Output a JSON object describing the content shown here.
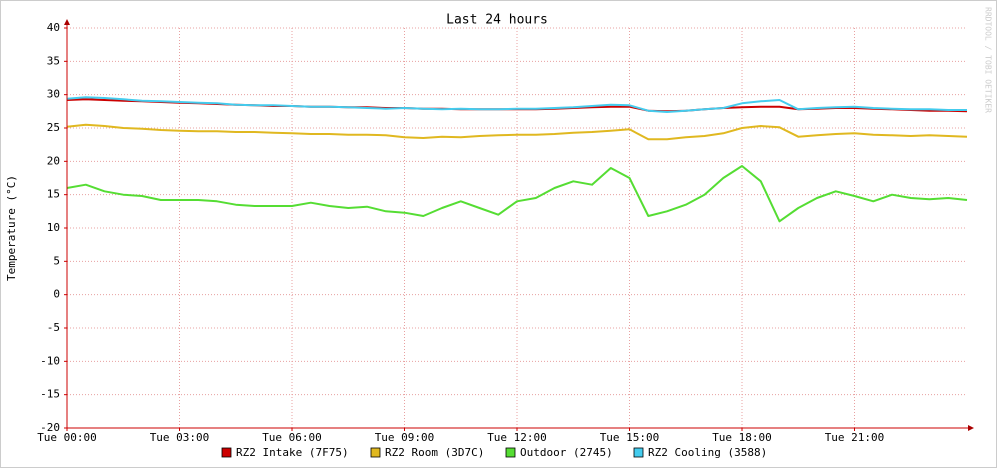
{
  "chart_data": {
    "type": "line",
    "title": "Last 24 hours",
    "y_label": "Temperature (°C)",
    "watermark": "RRDTOOL / TOBI OETIKER",
    "x": [
      0,
      0.5,
      1,
      1.5,
      2,
      2.5,
      3,
      3.5,
      4,
      4.5,
      5,
      5.5,
      6,
      6.5,
      7,
      7.5,
      8,
      8.5,
      9,
      9.5,
      10,
      10.5,
      11,
      11.5,
      12,
      12.5,
      13,
      13.5,
      14,
      14.5,
      15,
      15.5,
      16,
      16.5,
      17,
      17.5,
      18,
      18.5,
      19,
      19.5,
      20,
      20.5,
      21,
      21.5,
      22,
      22.5,
      23,
      23.5,
      24
    ],
    "xlim": [
      0,
      24
    ],
    "xticks": [
      {
        "value": 0,
        "label": "Tue 00:00"
      },
      {
        "value": 3,
        "label": "Tue 03:00"
      },
      {
        "value": 6,
        "label": "Tue 06:00"
      },
      {
        "value": 9,
        "label": "Tue 09:00"
      },
      {
        "value": 12,
        "label": "Tue 12:00"
      },
      {
        "value": 15,
        "label": "Tue 15:00"
      },
      {
        "value": 18,
        "label": "Tue 18:00"
      },
      {
        "value": 21,
        "label": "Tue 21:00"
      }
    ],
    "ylim": [
      -20,
      40
    ],
    "yticks": [
      -20,
      -15,
      -10,
      -5,
      0,
      5,
      10,
      15,
      20,
      25,
      30,
      35,
      40
    ],
    "grid": true,
    "series": [
      {
        "name": "RZ2 Intake (7F75)",
        "color": "#cc0000",
        "values": [
          29.2,
          29.3,
          29.2,
          29.1,
          29.0,
          28.9,
          28.8,
          28.7,
          28.6,
          28.5,
          28.4,
          28.3,
          28.3,
          28.2,
          28.2,
          28.1,
          28.1,
          28.0,
          28.0,
          27.9,
          27.9,
          27.8,
          27.8,
          27.8,
          27.8,
          27.8,
          27.9,
          28.0,
          28.1,
          28.2,
          28.2,
          27.6,
          27.5,
          27.6,
          27.8,
          28.0,
          28.1,
          28.2,
          28.2,
          27.8,
          27.9,
          28.0,
          28.0,
          27.9,
          27.8,
          27.7,
          27.6,
          27.6,
          27.5
        ]
      },
      {
        "name": "RZ2 Room (3D7C)",
        "color": "#e0b820",
        "values": [
          25.2,
          25.5,
          25.3,
          25.0,
          24.9,
          24.7,
          24.6,
          24.5,
          24.5,
          24.4,
          24.4,
          24.3,
          24.2,
          24.1,
          24.1,
          24.0,
          24.0,
          23.9,
          23.6,
          23.5,
          23.7,
          23.6,
          23.8,
          23.9,
          24.0,
          24.0,
          24.1,
          24.3,
          24.4,
          24.6,
          24.8,
          23.3,
          23.3,
          23.6,
          23.8,
          24.2,
          25.0,
          25.3,
          25.1,
          23.7,
          23.9,
          24.1,
          24.2,
          24.0,
          23.9,
          23.8,
          23.9,
          23.8,
          23.7
        ]
      },
      {
        "name": "Outdoor (2745)",
        "color": "#55dd33",
        "values": [
          16,
          16.5,
          15.5,
          15,
          14.8,
          14.2,
          14.2,
          14.2,
          14,
          13.5,
          13.3,
          13.3,
          13.3,
          13.8,
          13.3,
          13,
          13.2,
          12.5,
          12.3,
          11.8,
          13,
          14,
          13,
          12,
          14,
          14.5,
          16,
          17,
          16.5,
          19,
          17.5,
          11.8,
          12.5,
          13.5,
          15,
          17.5,
          19.3,
          17,
          11,
          13,
          14.5,
          15.5,
          14.8,
          14,
          15,
          14.5,
          14.3,
          14.5,
          14.2
        ]
      },
      {
        "name": "RZ2 Cooling (3588)",
        "color": "#44ccee",
        "values": [
          29.4,
          29.6,
          29.5,
          29.3,
          29.1,
          29.0,
          28.9,
          28.8,
          28.7,
          28.5,
          28.4,
          28.4,
          28.3,
          28.2,
          28.2,
          28.1,
          28.0,
          27.9,
          28.0,
          27.9,
          27.8,
          27.9,
          27.8,
          27.8,
          27.9,
          27.9,
          28.0,
          28.1,
          28.3,
          28.5,
          28.4,
          27.6,
          27.4,
          27.6,
          27.8,
          28.0,
          28.7,
          29.0,
          29.2,
          27.8,
          28.0,
          28.1,
          28.2,
          28.0,
          27.9,
          27.8,
          27.8,
          27.7,
          27.7
        ]
      }
    ]
  }
}
